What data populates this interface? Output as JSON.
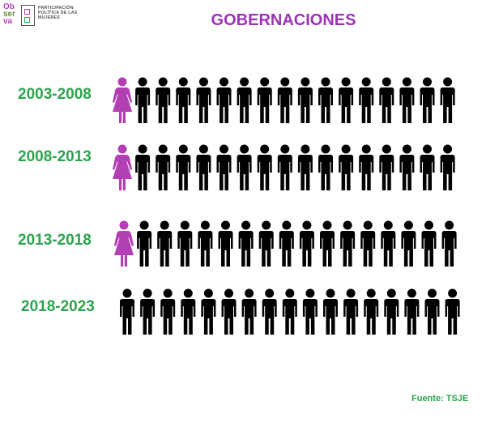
{
  "logo": {
    "word_lines": [
      "Ob",
      "ser",
      "va"
    ],
    "text_lines": [
      "PARTICIPACIÓN",
      "POLÍTICA DE LAS",
      "MUJERES"
    ]
  },
  "title": "GOBERNACIONES",
  "source": "Fuente: TSJE",
  "colors": {
    "women": "#b23fb4",
    "men": "#000000",
    "period": "#2ea34e",
    "title": "#9b35b4"
  },
  "chart_data": {
    "type": "pictogram",
    "title": "GOBERNACIONES",
    "categories": [
      "2003-2008",
      "2008-2013",
      "2013-2018",
      "2018-2023"
    ],
    "series": [
      {
        "name": "women",
        "values": [
          1,
          1,
          1,
          0
        ]
      },
      {
        "name": "men",
        "values": [
          16,
          16,
          16,
          17
        ]
      }
    ],
    "total_per_period": 17
  }
}
